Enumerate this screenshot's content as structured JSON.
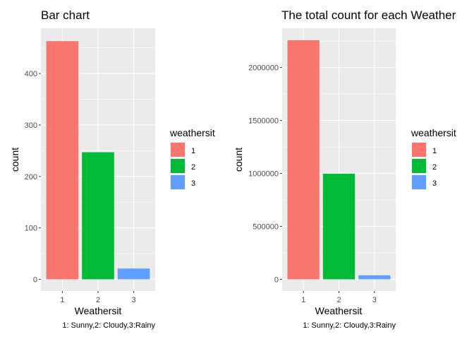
{
  "chart_data": [
    {
      "type": "bar",
      "title": "Bar chart",
      "xlabel": "Weathersit",
      "ylabel": "count",
      "caption": "1: Sunny,2: Cloudy,3:Rainy",
      "categories": [
        "1",
        "2",
        "3"
      ],
      "values": [
        463,
        247,
        21
      ],
      "ylim": [
        0,
        488
      ],
      "yticks": [
        0,
        100,
        200,
        300,
        400
      ],
      "ytick_labels": [
        "0",
        "100",
        "200",
        "300",
        "400"
      ],
      "grid": true,
      "legend": {
        "title": "weathersit",
        "position": "right",
        "entries": [
          "1",
          "2",
          "3"
        ]
      }
    },
    {
      "type": "bar",
      "title": "The total count for each Weather",
      "xlabel": "Weathersit",
      "ylabel": "count",
      "caption": "1: Sunny,2: Cloudy,3:Rainy",
      "categories": [
        "1",
        "2",
        "3"
      ],
      "values": [
        2257952,
        996858,
        37869
      ],
      "ylim": [
        0,
        2371000
      ],
      "yticks": [
        0,
        500000,
        1000000,
        1500000,
        2000000
      ],
      "ytick_labels": [
        "0",
        "500000",
        "1000000",
        "1500000",
        "2000000"
      ],
      "grid": true,
      "legend": {
        "title": "weathersit",
        "position": "right",
        "entries": [
          "1",
          "2",
          "3"
        ]
      }
    }
  ],
  "colors": {
    "series": [
      "#F8766D",
      "#00BA38",
      "#619CFF"
    ],
    "panel_bg": "#EBEBEB",
    "grid": "#FFFFFF"
  }
}
